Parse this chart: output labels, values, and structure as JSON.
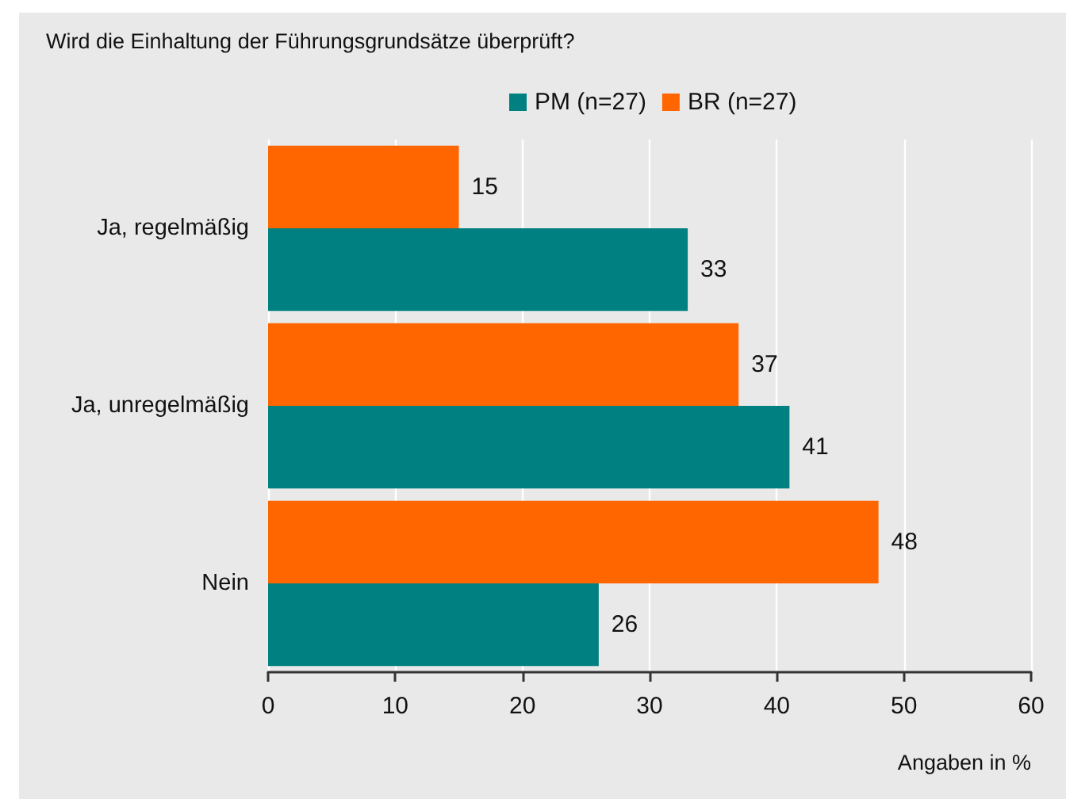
{
  "chart_data": {
    "type": "bar",
    "orientation": "horizontal",
    "title": "Wird die Einhaltung der Führungsgrundsätze überprüft?",
    "xlabel": "Angaben in %",
    "categories": [
      "Ja, regelmäßig",
      "Ja, unregelmäßig",
      "Nein"
    ],
    "series": [
      {
        "name": "PM (n=27)",
        "color": "#008080",
        "values": [
          33,
          41,
          26
        ]
      },
      {
        "name": "BR (n=27)",
        "color": "#ff6600",
        "values": [
          15,
          37,
          48
        ]
      }
    ],
    "xlim": [
      0,
      60
    ],
    "xticks": [
      0,
      10,
      20,
      30,
      40,
      50,
      60
    ],
    "grid": "x",
    "legend": "top",
    "data_labels": true
  }
}
